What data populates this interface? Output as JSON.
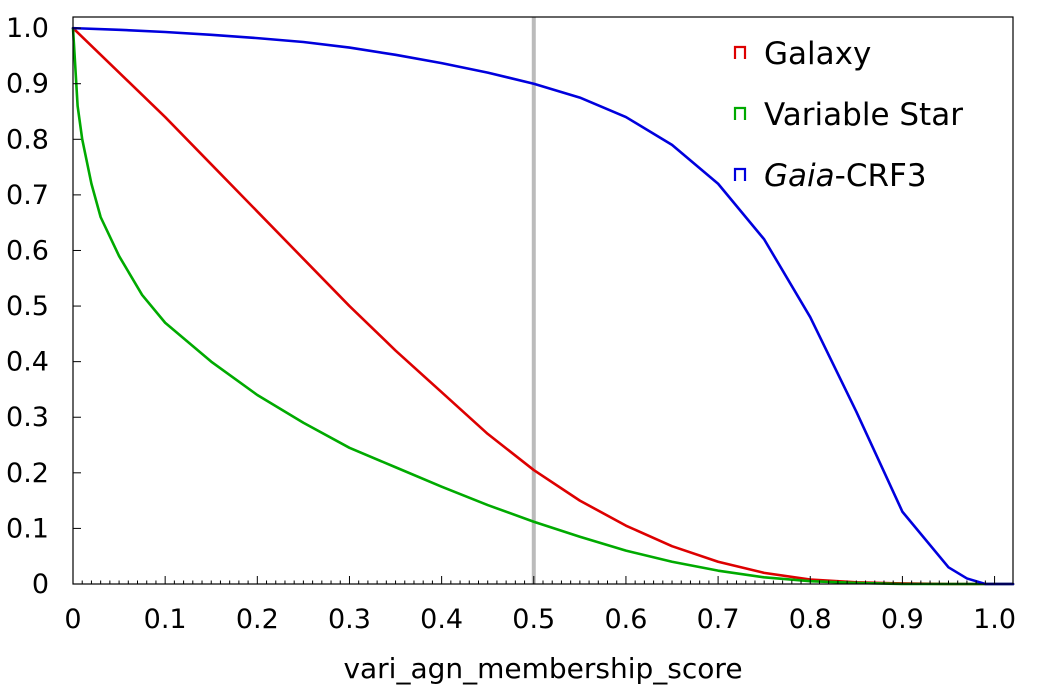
{
  "chart_data": {
    "type": "line",
    "title": "",
    "xlabel": "vari_agn_membership_score",
    "ylabel": "",
    "xlim": [
      0,
      1.02
    ],
    "ylim": [
      0,
      1.02
    ],
    "xticks": [
      "0",
      "0.1",
      "0.2",
      "0.3",
      "0.4",
      "0.5",
      "0.6",
      "0.7",
      "0.8",
      "0.9",
      "1.0"
    ],
    "yticks": [
      "0",
      "0.1",
      "0.2",
      "0.3",
      "0.4",
      "0.5",
      "0.6",
      "0.7",
      "0.8",
      "0.9",
      "1.0"
    ],
    "grid": false,
    "legend_position": "top-right",
    "vertical_marker": {
      "x": 0.5,
      "color": "#bbbbbb"
    },
    "series": [
      {
        "name": "Galaxy",
        "color": "#dd0000",
        "x": [
          0,
          0.05,
          0.1,
          0.15,
          0.2,
          0.25,
          0.3,
          0.35,
          0.4,
          0.45,
          0.5,
          0.55,
          0.6,
          0.65,
          0.7,
          0.75,
          0.8,
          0.85,
          0.9,
          0.95,
          1.0,
          1.02
        ],
        "y": [
          1.0,
          0.92,
          0.84,
          0.755,
          0.67,
          0.585,
          0.5,
          0.42,
          0.345,
          0.27,
          0.205,
          0.15,
          0.105,
          0.068,
          0.04,
          0.02,
          0.008,
          0.003,
          0.001,
          0.0,
          0.0,
          0.0
        ]
      },
      {
        "name": "Variable Star",
        "color": "#00aa00",
        "x": [
          0,
          0.005,
          0.01,
          0.02,
          0.03,
          0.05,
          0.075,
          0.1,
          0.15,
          0.2,
          0.25,
          0.3,
          0.35,
          0.4,
          0.45,
          0.5,
          0.55,
          0.6,
          0.65,
          0.7,
          0.75,
          0.8,
          0.85,
          0.9,
          1.0,
          1.02
        ],
        "y": [
          1.0,
          0.86,
          0.8,
          0.72,
          0.66,
          0.59,
          0.52,
          0.47,
          0.4,
          0.34,
          0.29,
          0.245,
          0.21,
          0.175,
          0.142,
          0.112,
          0.085,
          0.06,
          0.04,
          0.024,
          0.012,
          0.005,
          0.002,
          0.0,
          0.0,
          0.0
        ]
      },
      {
        "name": "Gaia-CRF3",
        "name_italic": "Gaia",
        "name_rest": "-CRF3",
        "color": "#0000dd",
        "x": [
          0,
          0.05,
          0.1,
          0.15,
          0.2,
          0.25,
          0.3,
          0.35,
          0.4,
          0.45,
          0.5,
          0.55,
          0.6,
          0.65,
          0.7,
          0.75,
          0.8,
          0.85,
          0.9,
          0.95,
          0.97,
          0.99,
          1.0,
          1.02
        ],
        "y": [
          1.0,
          0.997,
          0.993,
          0.988,
          0.982,
          0.975,
          0.965,
          0.952,
          0.937,
          0.92,
          0.9,
          0.875,
          0.84,
          0.79,
          0.72,
          0.62,
          0.48,
          0.31,
          0.13,
          0.03,
          0.01,
          0.0,
          0.0,
          0.0
        ]
      }
    ]
  }
}
